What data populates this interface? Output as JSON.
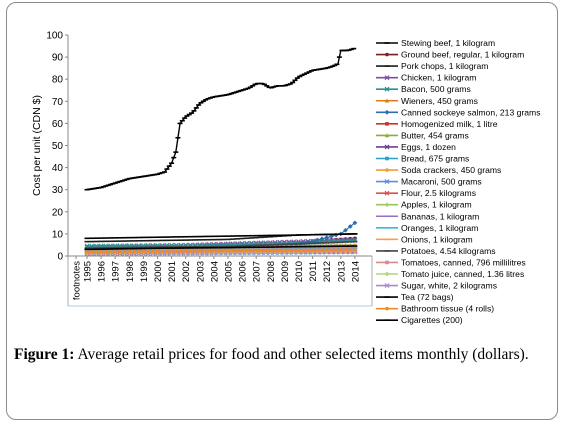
{
  "caption": {
    "figure_label": "Figure 1:",
    "text": " Average retail prices for food and other selected items monthly (dollars)."
  },
  "chart_data": {
    "type": "line",
    "ylabel": "Cost per unit (CDN $)",
    "ylim": [
      0,
      100
    ],
    "yticks": [
      "0",
      "10",
      "20",
      "30",
      "40",
      "50",
      "60",
      "70",
      "80",
      "90",
      "100"
    ],
    "x_tick_labels": [
      "footnotes",
      "1995",
      "1996",
      "1997",
      "1998",
      "1999",
      "2000",
      "2001",
      "2002",
      "2003",
      "2004",
      "2005",
      "2006",
      "2007",
      "2008",
      "2009",
      "2010",
      "2011",
      "2012",
      "2013",
      "2014"
    ],
    "grid": false,
    "legend_position": "right",
    "series": [
      {
        "name": "Stewing beef, 1 kilogram",
        "color": "#000000",
        "marker": "dash",
        "x": [
          1995.0,
          1996.0,
          1997.0,
          1998.0,
          1999.0,
          2000.0,
          2000.5,
          2001.0,
          2001.3,
          2001.6,
          2002.0,
          2002.5,
          2003.0,
          2003.5,
          2004.0,
          2005.0,
          2006.0,
          2006.5,
          2007.0,
          2007.5,
          2008.0,
          2008.5,
          2009.0,
          2009.5,
          2010.0,
          2011.0,
          2012.0,
          2012.5,
          2012.8,
          2013.0,
          2013.5,
          2014.0
        ],
        "values": [
          30,
          31,
          33,
          35,
          36,
          37,
          38,
          42,
          47,
          60,
          63,
          65,
          69,
          71,
          72,
          73,
          75,
          76,
          78,
          78,
          76,
          77,
          77,
          78,
          81,
          84,
          85,
          86,
          87,
          93,
          93,
          94
        ]
      },
      {
        "name": "Ground beef, regular, 1 kilogram",
        "color": "#7a1f1f",
        "marker": "circle",
        "x": [
          1995,
          2000,
          2005,
          2010,
          2014
        ],
        "values": [
          3.5,
          3.8,
          4.3,
          6.0,
          8.0
        ]
      },
      {
        "name": "Pork chops, 1 kilogram",
        "color": "#1f1f1f",
        "marker": "dash",
        "x": [
          1995,
          2000,
          2005,
          2010,
          2014
        ],
        "values": [
          6.5,
          7.0,
          7.5,
          9.5,
          10.0
        ]
      },
      {
        "name": "Chicken, 1 kilogram",
        "color": "#7b4fa3",
        "marker": "x",
        "x": [
          1995,
          2000,
          2005,
          2010,
          2014
        ],
        "values": [
          4.0,
          4.5,
          5.5,
          6.5,
          7.5
        ]
      },
      {
        "name": "Bacon, 500 grams",
        "color": "#2f8f8f",
        "marker": "x",
        "x": [
          1995,
          2000,
          2005,
          2010,
          2014
        ],
        "values": [
          4.5,
          4.8,
          5.0,
          5.8,
          7.0
        ]
      },
      {
        "name": "Wieners, 450 grams",
        "color": "#e07b1a",
        "marker": "triangle",
        "x": [
          1995,
          2000,
          2005,
          2010,
          2014
        ],
        "values": [
          3.0,
          3.3,
          3.5,
          4.0,
          4.5
        ]
      },
      {
        "name": "Canned sockeye salmon, 213 grams",
        "color": "#2c6fb0",
        "marker": "diamond",
        "x": [
          1995,
          2000,
          2005,
          2010,
          2013,
          2014
        ],
        "values": [
          3.0,
          3.5,
          4.0,
          5.0,
          10.0,
          15.0
        ]
      },
      {
        "name": "Homogenized milk, 1 litre",
        "color": "#c0392b",
        "marker": "square",
        "x": [
          1995,
          2000,
          2005,
          2010,
          2014
        ],
        "values": [
          1.2,
          1.4,
          1.7,
          2.1,
          2.4
        ]
      },
      {
        "name": "Butter, 454 grams",
        "color": "#8cae3e",
        "marker": "triangle",
        "x": [
          1995,
          2000,
          2005,
          2010,
          2014
        ],
        "values": [
          3.0,
          3.5,
          4.0,
          4.5,
          5.0
        ]
      },
      {
        "name": "Eggs, 1 dozen",
        "color": "#6d3f9c",
        "marker": "x",
        "x": [
          1995,
          2000,
          2005,
          2010,
          2014
        ],
        "values": [
          1.7,
          2.0,
          2.4,
          2.8,
          3.3
        ]
      },
      {
        "name": "Bread, 675 grams",
        "color": "#2aa0c4",
        "marker": "square",
        "x": [
          1995,
          2000,
          2005,
          2010,
          2014
        ],
        "values": [
          1.3,
          1.6,
          2.2,
          2.7,
          3.0
        ]
      },
      {
        "name": "Soda crackers, 450 grams",
        "color": "#f39c33",
        "marker": "circle",
        "x": [
          1995,
          2000,
          2005,
          2010,
          2014
        ],
        "values": [
          2.0,
          2.3,
          2.7,
          3.0,
          3.3
        ]
      },
      {
        "name": "Macaroni, 500 grams",
        "color": "#5b8fd6",
        "marker": "x",
        "x": [
          1995,
          2000,
          2005,
          2010,
          2014
        ],
        "values": [
          1.0,
          1.2,
          1.4,
          1.6,
          1.8
        ]
      },
      {
        "name": "Flour, 2.5 kilograms",
        "color": "#d9534f",
        "marker": "x",
        "x": [
          1995,
          2000,
          2005,
          2010,
          2014
        ],
        "values": [
          3.0,
          3.3,
          3.6,
          4.0,
          4.3
        ]
      },
      {
        "name": "Apples, 1 kilogram",
        "color": "#9dc35b",
        "marker": "plus",
        "x": [
          1995,
          2000,
          2005,
          2010,
          2014
        ],
        "values": [
          2.5,
          2.8,
          3.2,
          3.8,
          4.2
        ]
      },
      {
        "name": "Bananas, 1 kilogram",
        "color": "#9470c4",
        "marker": "dash",
        "x": [
          1995,
          2000,
          2005,
          2010,
          2014
        ],
        "values": [
          1.2,
          1.3,
          1.4,
          1.5,
          1.6
        ]
      },
      {
        "name": "Oranges, 1 kilogram",
        "color": "#3fb8d6",
        "marker": "dash",
        "x": [
          1995,
          2000,
          2005,
          2010,
          2014
        ],
        "values": [
          2.0,
          2.3,
          2.6,
          3.2,
          3.5
        ]
      },
      {
        "name": "Onions, 1 kilogram",
        "color": "#f5a04a",
        "marker": "dash",
        "x": [
          1995,
          2000,
          2005,
          2010,
          2014
        ],
        "values": [
          1.5,
          1.7,
          1.9,
          2.2,
          2.5
        ]
      },
      {
        "name": "Potatoes, 4.54 kilograms",
        "color": "#444444",
        "marker": "dash",
        "x": [
          1995,
          2000,
          2005,
          2010,
          2014
        ],
        "values": [
          3.5,
          4.0,
          4.3,
          5.5,
          6.5
        ]
      },
      {
        "name": "Tomatoes, canned, 796 millilitres",
        "color": "#d98c8c",
        "marker": "square",
        "x": [
          1995,
          2000,
          2005,
          2010,
          2014
        ],
        "values": [
          1.3,
          1.5,
          1.6,
          1.8,
          2.0
        ]
      },
      {
        "name": "Tomato juice, canned, 1.36 litres",
        "color": "#b8d47a",
        "marker": "diamond",
        "x": [
          1995,
          2000,
          2005,
          2010,
          2014
        ],
        "values": [
          1.5,
          1.8,
          2.0,
          2.3,
          2.6
        ]
      },
      {
        "name": "Sugar, white, 2 kilograms",
        "color": "#a98cc9",
        "marker": "x",
        "x": [
          1995,
          2000,
          2005,
          2010,
          2014
        ],
        "values": [
          2.0,
          2.3,
          2.6,
          2.9,
          3.2
        ]
      },
      {
        "name": "Tea (72 bags)",
        "color": "#000000",
        "marker": "dash",
        "x": [
          1995,
          2000,
          2005,
          2010,
          2014
        ],
        "values": [
          3.0,
          3.5,
          3.8,
          4.2,
          4.5
        ]
      },
      {
        "name": "Bathroom tissue (4 rolls)",
        "color": "#f08a24",
        "marker": "circle",
        "x": [
          1995,
          2000,
          2005,
          2010,
          2014
        ],
        "values": [
          1.8,
          2.0,
          2.3,
          2.5,
          2.8
        ]
      },
      {
        "name": "Cigarettes (200)",
        "color": "#000000",
        "marker": "dash",
        "x": [
          1995,
          2000,
          2005,
          2010,
          2014
        ],
        "values": [
          8.0,
          8.5,
          9.0,
          9.5,
          10.0
        ]
      }
    ]
  }
}
